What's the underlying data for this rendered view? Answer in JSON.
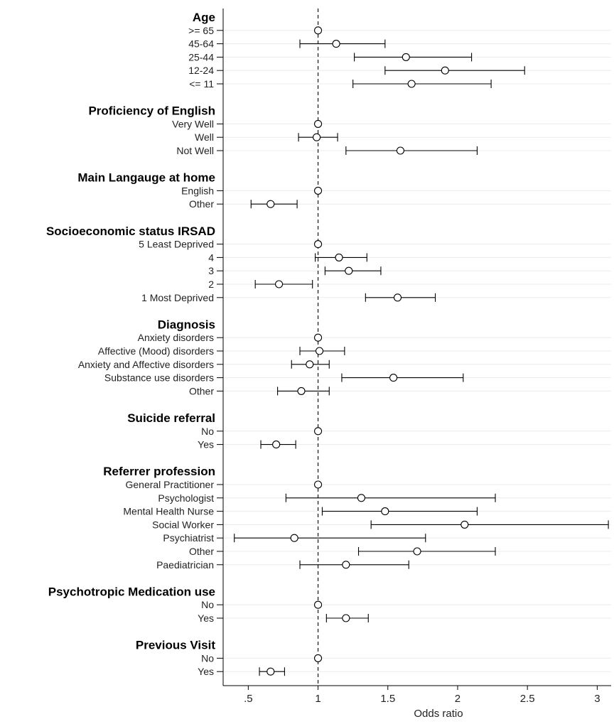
{
  "chart_data": {
    "type": "forest",
    "xlabel": "Odds ratio",
    "xlim": [
      0.32,
      3.1
    ],
    "x_ticks": [
      0.5,
      1,
      1.5,
      2,
      2.5,
      3
    ],
    "x_tick_labels": [
      ".5",
      "1",
      "1.5",
      "2",
      "2.5",
      "3"
    ],
    "reference_line": 1,
    "groups": [
      {
        "header": "Age",
        "rows": [
          {
            "label": ">= 65",
            "or": 1.0,
            "lo": null,
            "hi": null
          },
          {
            "label": "45-64",
            "or": 1.13,
            "lo": 0.87,
            "hi": 1.48
          },
          {
            "label": "25-44",
            "or": 1.63,
            "lo": 1.26,
            "hi": 2.1
          },
          {
            "label": "12-24",
            "or": 1.91,
            "lo": 1.48,
            "hi": 2.48
          },
          {
            "label": "<= 11",
            "or": 1.67,
            "lo": 1.25,
            "hi": 2.24
          }
        ]
      },
      {
        "header": "Proficiency of English",
        "rows": [
          {
            "label": "Very Well",
            "or": 1.0,
            "lo": null,
            "hi": null
          },
          {
            "label": "Well",
            "or": 0.99,
            "lo": 0.86,
            "hi": 1.14
          },
          {
            "label": "Not Well",
            "or": 1.59,
            "lo": 1.2,
            "hi": 2.14
          }
        ]
      },
      {
        "header": "Main Langauge at home",
        "rows": [
          {
            "label": "English",
            "or": 1.0,
            "lo": null,
            "hi": null
          },
          {
            "label": "Other",
            "or": 0.66,
            "lo": 0.52,
            "hi": 0.85
          }
        ]
      },
      {
        "header": "Socioeconomic status IRSAD",
        "rows": [
          {
            "label": "5 Least Deprived",
            "or": 1.0,
            "lo": null,
            "hi": null
          },
          {
            "label": "4",
            "or": 1.15,
            "lo": 0.98,
            "hi": 1.35
          },
          {
            "label": "3",
            "or": 1.22,
            "lo": 1.05,
            "hi": 1.45
          },
          {
            "label": "2",
            "or": 0.72,
            "lo": 0.55,
            "hi": 0.96
          },
          {
            "label": "1 Most Deprived",
            "or": 1.57,
            "lo": 1.34,
            "hi": 1.84
          }
        ]
      },
      {
        "header": "Diagnosis",
        "rows": [
          {
            "label": "Anxiety disorders",
            "or": 1.0,
            "lo": null,
            "hi": null
          },
          {
            "label": "Affective (Mood) disorders",
            "or": 1.01,
            "lo": 0.87,
            "hi": 1.19
          },
          {
            "label": "Anxiety and Affective disorders",
            "or": 0.94,
            "lo": 0.81,
            "hi": 1.08
          },
          {
            "label": "Substance use disorders",
            "or": 1.54,
            "lo": 1.17,
            "hi": 2.04
          },
          {
            "label": "Other",
            "or": 0.88,
            "lo": 0.71,
            "hi": 1.08
          }
        ]
      },
      {
        "header": "Suicide referral",
        "rows": [
          {
            "label": "No",
            "or": 1.0,
            "lo": null,
            "hi": null
          },
          {
            "label": "Yes",
            "or": 0.7,
            "lo": 0.59,
            "hi": 0.84
          }
        ]
      },
      {
        "header": "Referrer profession",
        "rows": [
          {
            "label": "General Practitioner",
            "or": 1.0,
            "lo": null,
            "hi": null
          },
          {
            "label": "Psychologist",
            "or": 1.31,
            "lo": 0.77,
            "hi": 2.27
          },
          {
            "label": "Mental Health Nurse",
            "or": 1.48,
            "lo": 1.03,
            "hi": 2.14
          },
          {
            "label": "Social Worker",
            "or": 2.05,
            "lo": 1.38,
            "hi": 3.08
          },
          {
            "label": "Psychiatrist",
            "or": 0.83,
            "lo": 0.4,
            "hi": 1.77
          },
          {
            "label": "Other",
            "or": 1.71,
            "lo": 1.29,
            "hi": 2.27
          },
          {
            "label": "Paediatrician",
            "or": 1.2,
            "lo": 0.87,
            "hi": 1.65
          }
        ]
      },
      {
        "header": "Psychotropic Medication use",
        "rows": [
          {
            "label": "No",
            "or": 1.0,
            "lo": null,
            "hi": null
          },
          {
            "label": "Yes",
            "or": 1.2,
            "lo": 1.06,
            "hi": 1.36
          }
        ]
      },
      {
        "header": "Previous Visit",
        "rows": [
          {
            "label": "No",
            "or": 1.0,
            "lo": null,
            "hi": null
          },
          {
            "label": "Yes",
            "or": 0.66,
            "lo": 0.58,
            "hi": 0.76
          }
        ]
      }
    ]
  }
}
